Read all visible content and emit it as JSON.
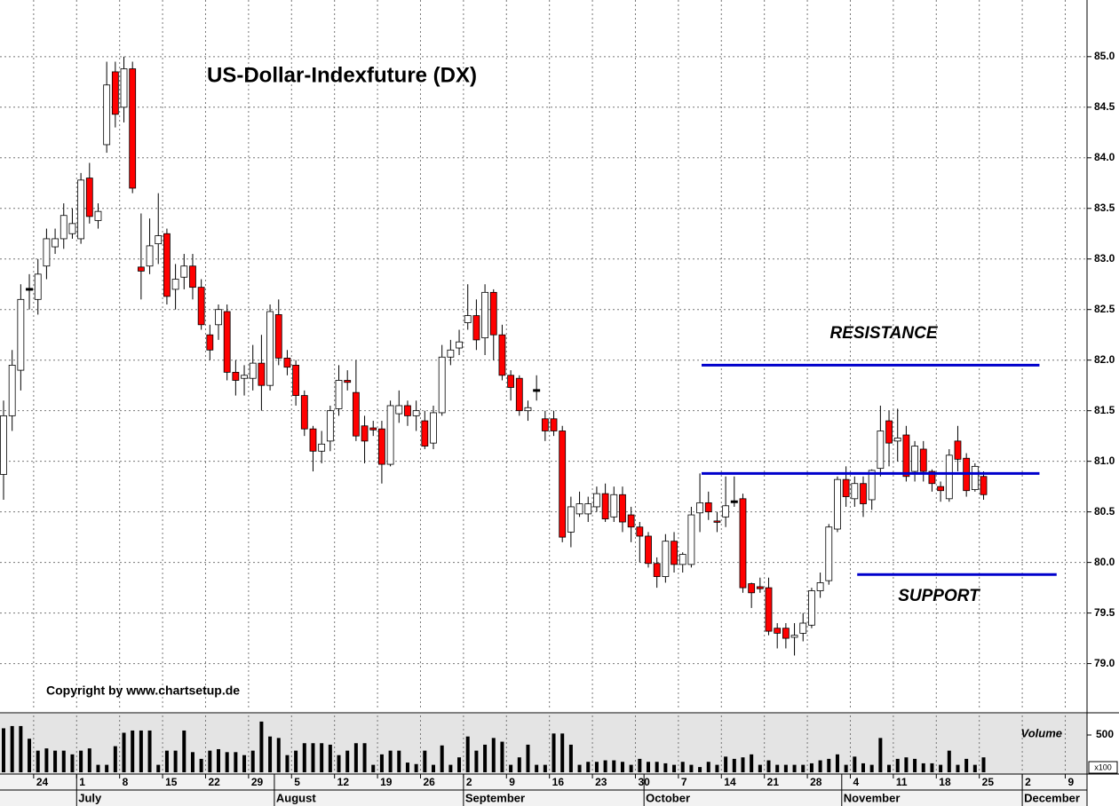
{
  "chart_data": {
    "type": "candlestick",
    "title": "US-Dollar-Indexfuture (DX)",
    "copyright": "Copyright by www.chartsetup.de",
    "resistance_label": "RESISTANCE",
    "support_label": "SUPPORT",
    "categories": [
      null,
      null,
      null,
      null,
      "24",
      null,
      null,
      null,
      null,
      "1",
      null,
      null,
      null,
      null,
      "8",
      null,
      null,
      null,
      null,
      "15",
      null,
      null,
      null,
      null,
      "22",
      null,
      null,
      null,
      null,
      "29",
      null,
      null,
      null,
      null,
      "5",
      null,
      null,
      null,
      null,
      "12",
      null,
      null,
      null,
      null,
      "19",
      null,
      null,
      null,
      null,
      "26",
      null,
      null,
      null,
      null,
      "2",
      null,
      null,
      null,
      null,
      "9",
      null,
      null,
      null,
      null,
      "16",
      null,
      null,
      null,
      null,
      "23",
      null,
      null,
      null,
      null,
      "30",
      null,
      null,
      null,
      null,
      "7",
      null,
      null,
      null,
      null,
      "14",
      null,
      null,
      null,
      null,
      "21",
      null,
      null,
      null,
      null,
      "28",
      null,
      null,
      null,
      null,
      "4",
      null,
      null,
      null,
      null,
      "11",
      null,
      null,
      null,
      null,
      "18",
      null,
      null,
      null,
      null,
      "25",
      null,
      null,
      null,
      null,
      "2",
      null,
      null,
      null,
      null,
      "9",
      null
    ],
    "xticks": [
      {
        "value": 9,
        "label": "July"
      },
      {
        "value": 32,
        "label": "August"
      },
      {
        "value": 54,
        "label": "September"
      },
      {
        "value": 75,
        "label": "October"
      },
      {
        "value": 98,
        "label": "November"
      },
      {
        "value": 119,
        "label": "December"
      }
    ],
    "open": [
      80.87,
      81.45,
      81.9,
      82.7,
      82.6,
      82.93,
      83.12,
      83.2,
      83.25,
      83.2,
      83.8,
      83.38,
      84.13,
      84.85,
      84.5,
      84.88,
      82.92,
      82.93,
      83.15,
      83.25,
      82.7,
      82.82,
      82.93,
      82.72,
      82.25,
      82.35,
      82.48,
      81.88,
      81.82,
      81.82,
      81.97,
      81.75,
      82.45,
      82.02,
      81.95,
      81.65,
      81.32,
      81.1,
      81.2,
      81.52,
      81.8,
      81.68,
      81.35,
      81.33,
      81.32,
      80.97,
      81.47,
      81.55,
      81.45,
      81.4,
      81.18,
      81.48,
      82.03,
      82.12,
      82.37,
      82.44,
      82.22,
      82.67,
      82.25,
      81.85,
      81.82,
      81.5,
      81.7,
      81.42,
      81.42,
      81.3,
      80.3,
      80.48,
      80.48,
      80.55,
      80.68,
      80.45,
      80.67,
      80.47,
      80.35,
      80.26,
      79.99,
      79.86,
      80.21,
      79.98,
      79.98,
      80.49,
      80.59,
      80.41,
      80.45,
      80.6,
      80.63,
      79.79,
      79.76,
      79.75,
      79.35,
      79.35,
      79.26,
      79.3,
      79.38,
      79.72,
      79.82,
      80.33,
      80.82,
      80.63,
      80.78,
      80.62,
      80.93,
      81.4,
      81.2,
      81.26,
      80.9,
      81.12,
      80.9,
      80.75,
      80.63,
      81.2,
      81.03,
      80.72,
      80.85,
      null,
      null,
      null,
      null,
      null,
      null,
      null,
      null,
      null,
      null,
      null
    ],
    "high": [
      81.6,
      82.1,
      82.75,
      82.85,
      83.0,
      83.3,
      83.3,
      83.55,
      83.5,
      83.85,
      83.95,
      83.55,
      84.95,
      84.95,
      85.0,
      84.95,
      83.45,
      83.4,
      83.65,
      83.3,
      82.95,
      83.05,
      83.05,
      82.8,
      82.35,
      82.55,
      82.55,
      82.0,
      81.95,
      82.15,
      82.25,
      82.55,
      82.6,
      82.1,
      82.0,
      81.7,
      81.35,
      81.3,
      81.55,
      81.95,
      81.9,
      82.0,
      81.45,
      81.4,
      81.4,
      81.6,
      81.7,
      81.6,
      81.6,
      81.5,
      81.55,
      82.15,
      82.2,
      82.3,
      82.75,
      82.6,
      82.75,
      82.7,
      82.35,
      81.9,
      81.85,
      81.6,
      81.85,
      81.5,
      81.5,
      81.35,
      80.65,
      80.7,
      80.65,
      80.75,
      80.78,
      80.75,
      80.75,
      80.55,
      80.4,
      80.3,
      80.05,
      80.28,
      80.3,
      80.1,
      80.55,
      80.88,
      80.7,
      80.5,
      80.85,
      80.85,
      80.68,
      79.8,
      79.85,
      79.85,
      79.4,
      79.4,
      79.4,
      79.5,
      79.75,
      79.9,
      80.38,
      80.85,
      80.95,
      80.85,
      80.85,
      80.92,
      81.55,
      81.5,
      81.52,
      81.35,
      81.2,
      81.2,
      80.92,
      80.8,
      81.12,
      81.35,
      81.08,
      80.98,
      80.9,
      null,
      null,
      null,
      null,
      null,
      null,
      null,
      null,
      null,
      null,
      null
    ],
    "low": [
      80.62,
      81.3,
      81.7,
      82.5,
      82.45,
      82.8,
      83.05,
      83.1,
      83.2,
      83.15,
      83.35,
      83.3,
      84.05,
      84.3,
      84.35,
      83.65,
      82.6,
      82.85,
      82.95,
      82.55,
      82.5,
      82.7,
      82.6,
      82.3,
      82.0,
      82.2,
      81.8,
      81.65,
      81.65,
      81.7,
      81.5,
      81.7,
      81.95,
      81.85,
      81.55,
      81.25,
      80.9,
      80.98,
      81.1,
      81.45,
      81.7,
      81.2,
      80.98,
      81.25,
      80.78,
      80.95,
      81.38,
      81.35,
      81.3,
      81.12,
      81.12,
      81.45,
      81.95,
      82.05,
      82.3,
      82.1,
      82.05,
      82.0,
      81.8,
      81.6,
      81.45,
      81.4,
      81.6,
      81.2,
      81.25,
      80.2,
      80.15,
      80.45,
      80.4,
      80.5,
      80.4,
      80.4,
      80.3,
      80.2,
      80.0,
      79.95,
      79.75,
      79.8,
      79.9,
      79.9,
      79.95,
      80.3,
      80.42,
      80.3,
      80.35,
      80.55,
      79.7,
      79.55,
      79.7,
      79.28,
      79.15,
      79.15,
      79.08,
      79.22,
      79.35,
      79.65,
      79.78,
      80.3,
      80.55,
      80.55,
      80.45,
      80.52,
      80.85,
      80.95,
      81.0,
      80.8,
      80.8,
      80.8,
      80.7,
      80.6,
      80.6,
      80.9,
      80.65,
      80.7,
      80.62,
      null,
      null,
      null,
      null,
      null,
      null,
      null,
      null,
      null,
      null,
      null
    ],
    "close": [
      81.45,
      81.95,
      82.6,
      82.7,
      82.85,
      83.2,
      83.2,
      83.43,
      83.35,
      83.78,
      83.42,
      83.47,
      84.72,
      84.43,
      84.88,
      83.7,
      82.88,
      83.13,
      83.23,
      82.63,
      82.8,
      82.93,
      82.72,
      82.35,
      82.1,
      82.5,
      81.88,
      81.8,
      81.85,
      81.97,
      81.75,
      82.48,
      82.02,
      81.93,
      81.65,
      81.32,
      81.1,
      81.17,
      81.5,
      81.8,
      81.78,
      81.25,
      81.2,
      81.31,
      80.97,
      81.55,
      81.55,
      81.45,
      81.5,
      81.15,
      81.48,
      82.03,
      82.1,
      82.18,
      82.44,
      82.2,
      82.67,
      82.25,
      81.85,
      81.73,
      81.5,
      81.53,
      81.7,
      81.3,
      81.3,
      80.25,
      80.55,
      80.58,
      80.58,
      80.68,
      80.43,
      80.67,
      80.4,
      80.35,
      80.26,
      79.99,
      79.86,
      80.21,
      79.98,
      80.08,
      80.47,
      80.59,
      80.5,
      80.4,
      80.56,
      80.6,
      79.75,
      79.7,
      79.74,
      79.32,
      79.3,
      79.25,
      79.28,
      79.4,
      79.72,
      79.8,
      80.35,
      80.82,
      80.65,
      80.78,
      80.58,
      80.91,
      81.3,
      81.18,
      81.23,
      80.85,
      81.15,
      80.9,
      80.78,
      80.71,
      81.06,
      81.02,
      80.71,
      80.95,
      80.67,
      null,
      null,
      null,
      null,
      null,
      null,
      null,
      null,
      null,
      null,
      null
    ],
    "up_color": "#ffffff",
    "down_color": "#ff0000",
    "ylim": [
      78.54,
      85.56
    ],
    "yticks": [
      {
        "value": 79,
        "label": "79.0"
      },
      79.5,
      {
        "value": 80,
        "label": "80.0"
      },
      80.5,
      {
        "value": 81,
        "label": "81.0"
      },
      81.5,
      {
        "value": 82,
        "label": "82.0"
      },
      82.5,
      {
        "value": 83,
        "label": "83.0"
      },
      83.5,
      {
        "value": 84,
        "label": "84.0"
      },
      84.5,
      {
        "value": 85,
        "label": "85.0"
      }
    ],
    "grid": true,
    "levels": [
      {
        "value": 81.95,
        "from": 81.2,
        "to": 120.5,
        "color": "#0000cc"
      },
      {
        "value": 80.88,
        "from": 81.2,
        "to": 120.5,
        "color": "#0000cc"
      },
      {
        "value": 79.88,
        "from": 99.3,
        "to": 122.5,
        "color": "#0000cc"
      }
    ],
    "volume": {
      "label": "Volume",
      "unit": "x100",
      "color": "#000000",
      "ylim": [
        0,
        762
      ],
      "yticks": [
        500
      ],
      "values": [
        590,
        620,
        620,
        450,
        290,
        320,
        290,
        290,
        240,
        290,
        320,
        100,
        100,
        350,
        530,
        560,
        560,
        560,
        100,
        290,
        290,
        560,
        270,
        180,
        290,
        310,
        270,
        270,
        230,
        290,
        680,
        480,
        460,
        230,
        290,
        390,
        390,
        390,
        370,
        230,
        290,
        390,
        390,
        100,
        240,
        290,
        290,
        130,
        110,
        290,
        100,
        360,
        100,
        200,
        480,
        290,
        370,
        460,
        410,
        100,
        200,
        370,
        100,
        100,
        520,
        520,
        370,
        100,
        140,
        140,
        160,
        160,
        140,
        100,
        180,
        140,
        140,
        120,
        100,
        140,
        100,
        70,
        140,
        100,
        210,
        180,
        200,
        240,
        100,
        160,
        100,
        100,
        100,
        100,
        120,
        160,
        180,
        240,
        100,
        210,
        120,
        100,
        460,
        100,
        180,
        200,
        180,
        120,
        120,
        100,
        290,
        100,
        180,
        100,
        200,
        null,
        null,
        null,
        null,
        null,
        null,
        null,
        null,
        null,
        null,
        null
      ]
    }
  }
}
